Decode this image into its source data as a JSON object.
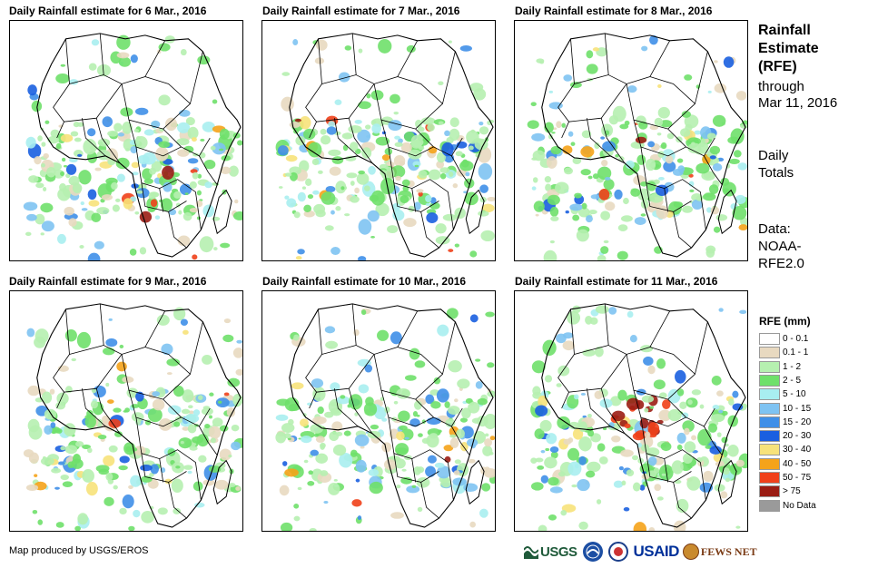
{
  "panels": [
    {
      "title": "Daily Rainfall estimate for 6 Mar., 2016"
    },
    {
      "title": "Daily Rainfall estimate for 7 Mar., 2016"
    },
    {
      "title": "Daily Rainfall estimate for 8 Mar., 2016"
    },
    {
      "title": "Daily Rainfall estimate for 9 Mar., 2016"
    },
    {
      "title": "Daily Rainfall estimate for 10 Mar., 2016"
    },
    {
      "title": "Daily Rainfall estimate for 11 Mar., 2016"
    }
  ],
  "side": {
    "title_line1": "Rainfall",
    "title_line2": "Estimate",
    "title_line3": "(RFE)",
    "through": "through",
    "date": "Mar 11, 2016",
    "daily1": "Daily",
    "daily2": "Totals",
    "data1": "Data:",
    "data2": "NOAA-",
    "data3": "RFE2.0"
  },
  "legend": {
    "title": "RFE (mm)",
    "items": [
      {
        "label": "0 - 0.1",
        "color": "#ffffff"
      },
      {
        "label": "0.1 - 1",
        "color": "#e8d9c0"
      },
      {
        "label": "1 - 2",
        "color": "#b6f0b0"
      },
      {
        "label": "2 - 5",
        "color": "#6fe06a"
      },
      {
        "label": "5 - 10",
        "color": "#a8eef0"
      },
      {
        "label": "10 - 15",
        "color": "#7ec3f2"
      },
      {
        "label": "15 - 20",
        "color": "#3f8fe8"
      },
      {
        "label": "20 - 30",
        "color": "#1a5fe0"
      },
      {
        "label": "30 - 40",
        "color": "#f7e27a"
      },
      {
        "label": "40 - 50",
        "color": "#f5a31a"
      },
      {
        "label": "50 - 75",
        "color": "#f0401a"
      },
      {
        "label": "> 75",
        "color": "#9b1d14"
      },
      {
        "label": "No Data",
        "color": "#9a9a9a"
      }
    ]
  },
  "footer": {
    "credit": "Map produced by USGS/EROS"
  },
  "logos": {
    "usgs": "USGS",
    "usaid": "USAID",
    "fews": "FEWS NET"
  }
}
